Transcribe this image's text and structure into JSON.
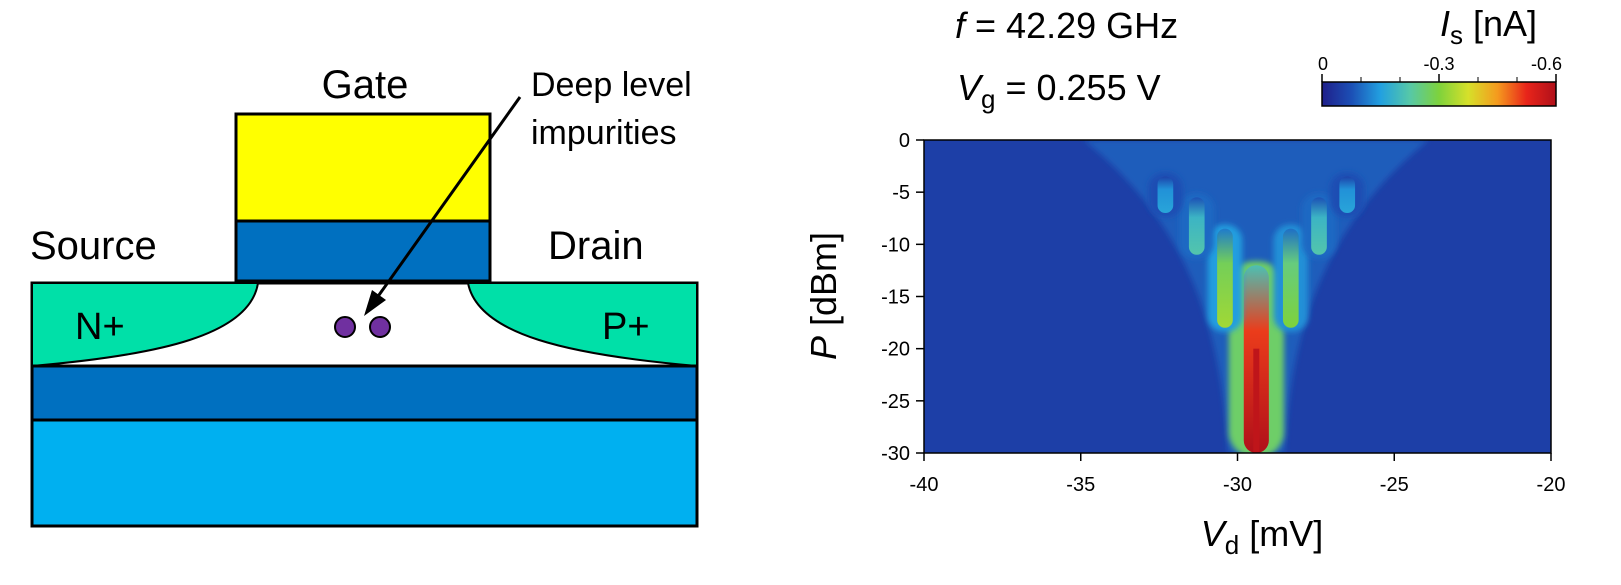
{
  "device": {
    "gate_label": "Gate",
    "source_label": "Source",
    "drain_label": "Drain",
    "n_label": "N+",
    "p_label": "P+",
    "impurity_label_line1": "Deep level",
    "impurity_label_line2": "impurities",
    "colors": {
      "gate_metal": "#ffff00",
      "gate_oxide": "#0070c0",
      "doped_region": "#00e0a8",
      "buried_layer": "#0070c0",
      "substrate": "#00b0f0",
      "impurity": "#7030a0"
    }
  },
  "annotations": {
    "freq_symbol": "f",
    "freq_value": " = 42.29 GHz",
    "vg_symbol": "V",
    "vg_sub": "g",
    "vg_value": " = 0.255 V"
  },
  "chart_data": {
    "type": "heatmap",
    "xlabel_symbol": "V",
    "xlabel_sub": "d",
    "xlabel_unit": " [mV]",
    "ylabel_symbol": "P",
    "ylabel_unit": " [dBm]",
    "xlim": [
      -40,
      -20
    ],
    "ylim": [
      -30,
      0
    ],
    "xticks": [
      -40,
      -35,
      -30,
      -25,
      -20
    ],
    "yticks": [
      0,
      -5,
      -10,
      -15,
      -20,
      -25,
      -30
    ],
    "xtick_labels": [
      "-40",
      "-35",
      "-30",
      "-25",
      "-20"
    ],
    "ytick_labels": [
      "0",
      "-5",
      "-10",
      "-15",
      "-20",
      "-25",
      "-30"
    ],
    "background_level": -0.05,
    "features": [
      {
        "x": -29.4,
        "p_top": -12,
        "p_bottom": -30,
        "peak": -0.6
      },
      {
        "x": -30.4,
        "p_top": -8.5,
        "p_bottom": -18,
        "peak": -0.33
      },
      {
        "x": -28.3,
        "p_top": -8.5,
        "p_bottom": -18,
        "peak": -0.3
      },
      {
        "x": -31.3,
        "p_top": -5.5,
        "p_bottom": -11,
        "peak": -0.22
      },
      {
        "x": -27.4,
        "p_top": -5.5,
        "p_bottom": -11,
        "peak": -0.22
      },
      {
        "x": -32.3,
        "p_top": -3.5,
        "p_bottom": -7,
        "peak": -0.16
      },
      {
        "x": -26.5,
        "p_top": -3.5,
        "p_bottom": -7,
        "peak": -0.16
      }
    ],
    "colorbar": {
      "label_symbol": "I",
      "label_sub": "s",
      "label_unit": " [nA]",
      "ticks": [
        0,
        -0.3,
        -0.6
      ],
      "tick_labels": [
        "0",
        "-0.3",
        "-0.6"
      ],
      "range": [
        0,
        -0.6
      ],
      "stops": [
        "#1f1f8a",
        "#1c4fb5",
        "#22a0e0",
        "#56c8a8",
        "#7ed23c",
        "#d6e02a",
        "#f59a1e",
        "#e8241a",
        "#b0101a"
      ]
    }
  }
}
